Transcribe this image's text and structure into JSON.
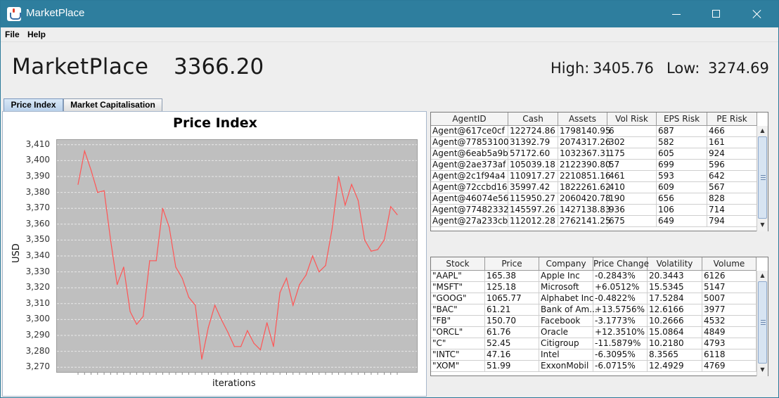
{
  "window": {
    "title": "MarketPlace",
    "icon": "java-cup-icon"
  },
  "menu": [
    {
      "label": "File"
    },
    {
      "label": "Help"
    }
  ],
  "header": {
    "title": "MarketPlace",
    "index_value": "3366.20",
    "high_label": "High:",
    "high_value": "3405.76",
    "low_label": "Low:",
    "low_value": "3274.69"
  },
  "tabs": [
    {
      "label": "Price Index",
      "active": true
    },
    {
      "label": "Market Capitalisation",
      "active": false
    }
  ],
  "colors": {
    "titlebar": "#2e7e9e",
    "plot_bg": "#bfbfbf",
    "series_line": "#ff5555",
    "grid": "#e8e8e8"
  },
  "chart_data": {
    "type": "line",
    "title": "Price Index",
    "xlabel": "iterations",
    "ylabel": "USD",
    "ylim": [
      3267,
      3413
    ],
    "yticks": [
      "3,270",
      "3,280",
      "3,290",
      "3,300",
      "3,310",
      "3,320",
      "3,330",
      "3,340",
      "3,350",
      "3,360",
      "3,370",
      "3,380",
      "3,390",
      "3,400",
      "3,410"
    ],
    "grid": true,
    "series": [
      {
        "values": [
          3385,
          3406,
          3394,
          3380,
          3381,
          3350,
          3322,
          3333,
          3305,
          3297,
          3302,
          3337,
          3337,
          3370,
          3358,
          3333,
          3326,
          3314,
          3309,
          3275,
          3295,
          3309,
          3300,
          3292,
          3283,
          3283,
          3293,
          3285,
          3281,
          3298,
          3283,
          3317,
          3326,
          3309,
          3322,
          3328,
          3340,
          3330,
          3334,
          3357,
          3390,
          3372,
          3385,
          3375,
          3350,
          3343,
          3344,
          3350,
          3371,
          3366
        ]
      }
    ]
  },
  "agents_table": {
    "columns": [
      "AgentID",
      "Cash",
      "Assets",
      "Vol Risk",
      "EPS Risk",
      "PE Risk"
    ],
    "rows": [
      [
        "Agent@617ce0cf",
        "122724.86",
        "1798140.95",
        "6",
        "687",
        "466"
      ],
      [
        "Agent@77853100",
        "31392.79",
        "2074317.26",
        "302",
        "582",
        "161"
      ],
      [
        "Agent@6eab5a9b",
        "57172.60",
        "1032367.31",
        "175",
        "605",
        "924"
      ],
      [
        "Agent@2ae373af",
        "105039.18",
        "2122390.80",
        "57",
        "699",
        "596"
      ],
      [
        "Agent@2c1f94a4",
        "110917.27",
        "2210851.16",
        "461",
        "593",
        "642"
      ],
      [
        "Agent@72ccbd16",
        "35997.42",
        "1822261.62",
        "410",
        "609",
        "567"
      ],
      [
        "Agent@46074e56",
        "115950.27",
        "2060420.78",
        "190",
        "656",
        "828"
      ],
      [
        "Agent@77482332",
        "145597.26",
        "1427138.83",
        "936",
        "106",
        "714"
      ],
      [
        "Agent@27a233cb",
        "112012.28",
        "2762141.25",
        "675",
        "649",
        "794"
      ]
    ]
  },
  "stocks_table": {
    "columns": [
      "Stock",
      "Price",
      "Company",
      "Price Change",
      "Volatility",
      "Volume"
    ],
    "rows": [
      [
        "\"AAPL\"",
        "165.38",
        "Apple Inc",
        "-0.2843%",
        "20.3443",
        "6126"
      ],
      [
        "\"MSFT\"",
        "125.18",
        "Microsoft",
        "+6.0512%",
        "15.5345",
        "5147"
      ],
      [
        "\"GOOG\"",
        "1065.77",
        "Alphabet Inc",
        "-0.4822%",
        "17.5284",
        "5007"
      ],
      [
        "\"BAC\"",
        "61.21",
        "Bank of Am...",
        "+13.5756%",
        "12.6166",
        "3977"
      ],
      [
        "\"FB\"",
        "150.70",
        "Facebook",
        "-3.1773%",
        "10.2666",
        "4532"
      ],
      [
        "\"ORCL\"",
        "61.76",
        "Oracle",
        "+12.3510%",
        "15.0864",
        "4849"
      ],
      [
        "\"C\"",
        "52.45",
        "Citigroup",
        "-11.5879%",
        "10.2180",
        "4793"
      ],
      [
        "\"INTC\"",
        "47.16",
        "Intel",
        "-6.3095%",
        "8.3565",
        "6118"
      ],
      [
        "\"XOM\"",
        "51.99",
        "ExxonMobil",
        "-6.0715%",
        "12.4929",
        "4769"
      ]
    ]
  }
}
